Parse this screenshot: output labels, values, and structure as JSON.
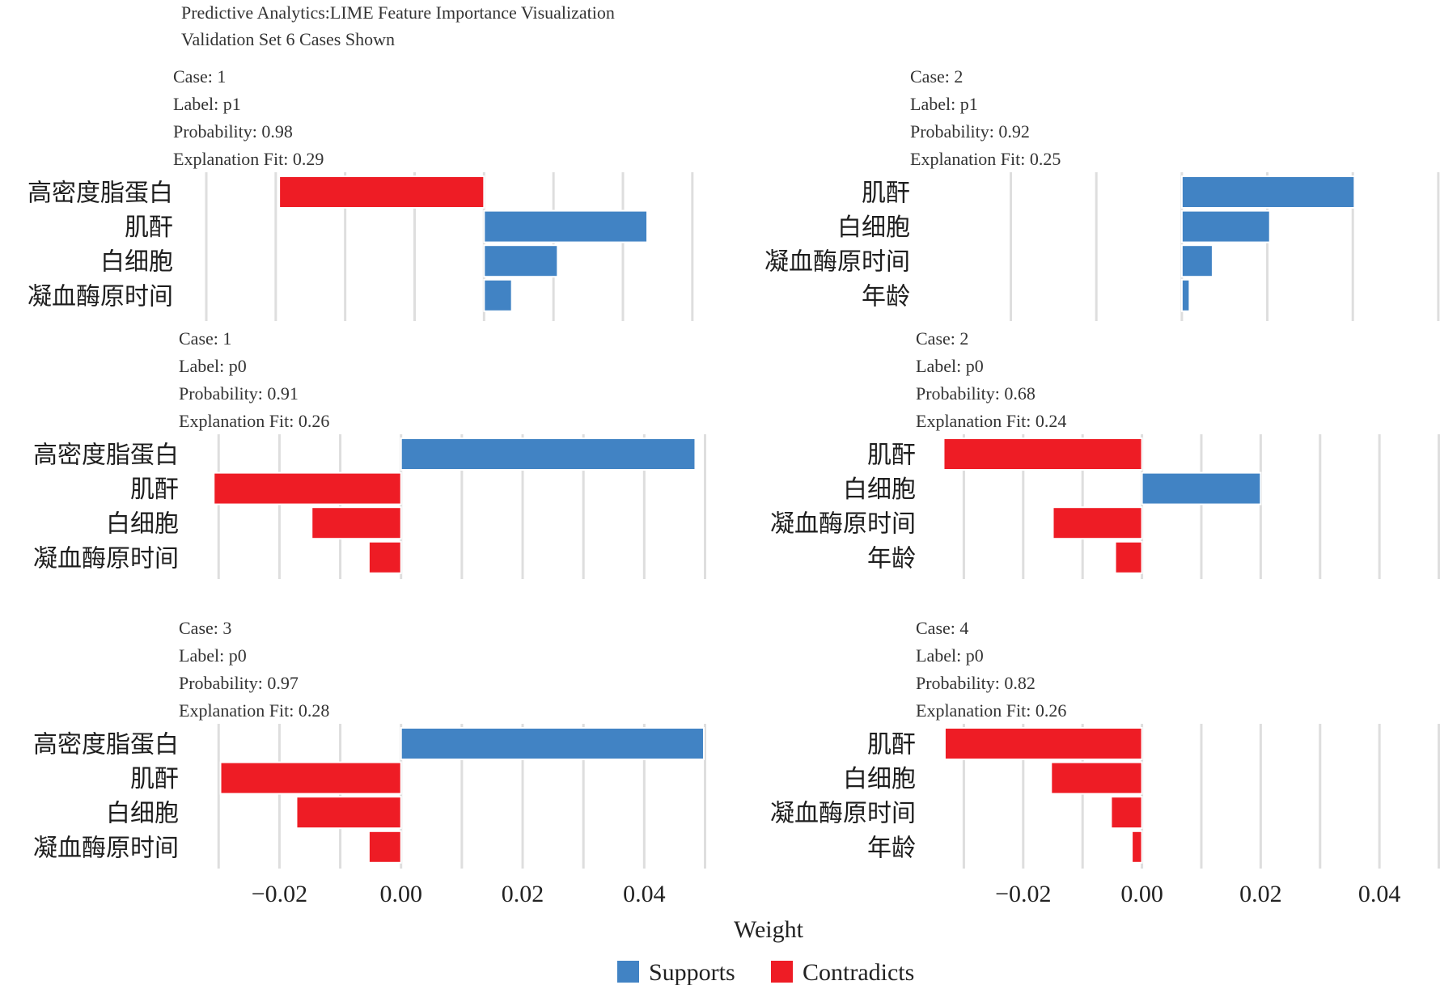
{
  "chart_data": {
    "type": "bar",
    "orientation": "horizontal",
    "title": "Predictive Analytics:LIME Feature Importance Visualization",
    "subtitle": "Validation Set 6 Cases Shown",
    "xlabel": "Weight",
    "xticks": [
      "−0.02",
      "0.00",
      "0.02",
      "0.04"
    ],
    "tick_values": [
      -0.02,
      0,
      0.02,
      0.04
    ],
    "grid": true,
    "legend_position": "bottom",
    "colors": {
      "Supports": "#4183c4",
      "Contradicts": "#ee1c25"
    },
    "legend": [
      {
        "key": "Supports",
        "label": "Supports"
      },
      {
        "key": "Contradicts",
        "label": "Contradicts"
      }
    ],
    "panels": [
      {
        "header": [
          "Case: 1",
          "Label: p1",
          "Probability: 0.98",
          "Explanation Fit: 0.29"
        ],
        "xlim": [
          -0.04,
          0.032
        ],
        "features": [
          "高密度脂蛋白",
          "肌酐",
          "白细胞",
          "凝血酶原时间"
        ],
        "weights": [
          -0.0295,
          0.0235,
          0.0106,
          0.004
        ]
      },
      {
        "header": [
          "Case: 2",
          "Label: p1",
          "Probability: 0.92",
          "Explanation Fit: 0.25"
        ],
        "xlim": [
          -0.028,
          0.0302
        ],
        "features": [
          "肌酐",
          "白细胞",
          "凝血酶原时间",
          "年龄"
        ],
        "weights": [
          0.0202,
          0.0103,
          0.0036,
          0.0009
        ]
      },
      {
        "header": [
          "Case: 1",
          "Label: p0",
          "Probability: 0.91",
          "Explanation Fit: 0.26"
        ],
        "xlim": [
          -0.0311,
          0.0502
        ],
        "features": [
          "高密度脂蛋白",
          "肌酐",
          "白细胞",
          "凝血酶原时间"
        ],
        "weights": [
          0.0484,
          -0.0308,
          -0.0147,
          -0.0053
        ]
      },
      {
        "header": [
          "Case: 2",
          "Label: p0",
          "Probability: 0.68",
          "Explanation Fit: 0.24"
        ],
        "xlim": [
          -0.0336,
          0.0502
        ],
        "features": [
          "肌酐",
          "白细胞",
          "凝血酶原时间",
          "年龄"
        ],
        "weights": [
          -0.0334,
          0.02,
          -0.015,
          -0.0045
        ]
      },
      {
        "header": [
          "Case: 3",
          "Label: p0",
          "Probability: 0.97",
          "Explanation Fit: 0.28"
        ],
        "xlim": [
          -0.0311,
          0.0502
        ],
        "features": [
          "高密度脂蛋白",
          "肌酐",
          "白细胞",
          "凝血酶原时间"
        ],
        "weights": [
          0.0498,
          -0.0297,
          -0.0172,
          -0.0053
        ]
      },
      {
        "header": [
          "Case: 4",
          "Label: p0",
          "Probability: 0.82",
          "Explanation Fit: 0.26"
        ],
        "xlim": [
          -0.0336,
          0.0502
        ],
        "features": [
          "肌酐",
          "白细胞",
          "凝血酶原时间",
          "年龄"
        ],
        "weights": [
          -0.0332,
          -0.0153,
          -0.0052,
          -0.0017
        ]
      }
    ]
  }
}
